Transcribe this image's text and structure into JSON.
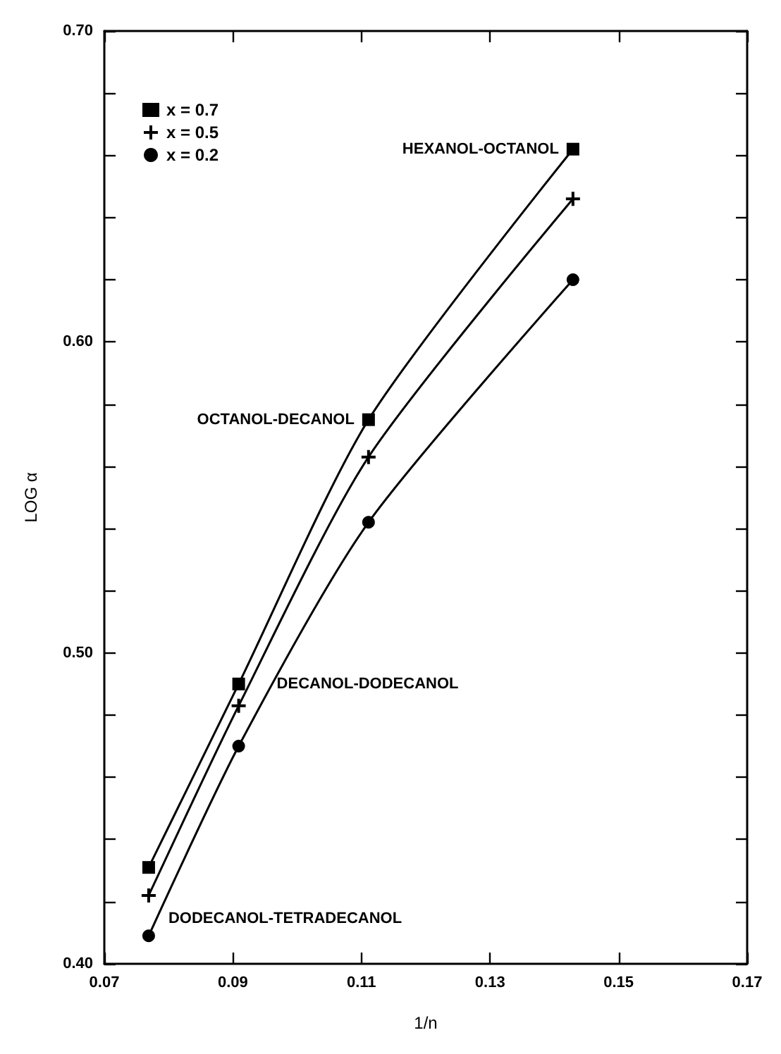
{
  "chart_data": {
    "type": "line",
    "xlabel": "1/n",
    "ylabel": "LOG α",
    "x": [
      0.0769,
      0.0909,
      0.1111,
      0.1429
    ],
    "series": [
      {
        "name": "x = 0.7",
        "color": "#000000",
        "marker": "square",
        "values": [
          0.431,
          0.49,
          0.575,
          0.662
        ]
      },
      {
        "name": "x = 0.5",
        "color": "#000000",
        "marker": "cross",
        "values": [
          0.422,
          0.483,
          0.563,
          0.646
        ]
      },
      {
        "name": "x = 0.2",
        "color": "#000000",
        "marker": "circle",
        "values": [
          0.409,
          0.47,
          0.542,
          0.62
        ]
      }
    ],
    "xlim": [
      0.07,
      0.17
    ],
    "xticks": [
      0.07,
      0.09,
      0.11,
      0.13,
      0.15,
      0.17
    ],
    "ylim": [
      0.4,
      0.7
    ],
    "yticks": [
      {
        "value": 0.4,
        "label": "0.40"
      },
      {
        "value": 0.42,
        "label": null
      },
      {
        "value": 0.44,
        "label": null
      },
      {
        "value": 0.46,
        "label": null
      },
      {
        "value": 0.48,
        "label": null
      },
      {
        "value": 0.5,
        "label": "0.50"
      },
      {
        "value": 0.52,
        "label": null
      },
      {
        "value": 0.54,
        "label": null
      },
      {
        "value": 0.56,
        "label": null
      },
      {
        "value": 0.58,
        "label": null
      },
      {
        "value": 0.6,
        "label": "0.60"
      },
      {
        "value": 0.62,
        "label": null
      },
      {
        "value": 0.64,
        "label": null
      },
      {
        "value": 0.66,
        "label": null
      },
      {
        "value": 0.68,
        "label": null
      },
      {
        "value": 0.7,
        "label": "0.70"
      }
    ],
    "annotations": [
      {
        "text": "HEXANOL-OCTANOL",
        "x": 0.1429,
        "y": 0.662
      },
      {
        "text": "OCTANOL-DECANOL",
        "x": 0.1111,
        "y": 0.575
      },
      {
        "text": "DECANOL-DODECANOL",
        "x": 0.0909,
        "y": 0.49
      },
      {
        "text": "DODECANOL-TETRADECANOL",
        "x": 0.0769,
        "y": 0.409
      }
    ],
    "grid": false,
    "legend": "top left",
    "line_style": "solid"
  }
}
